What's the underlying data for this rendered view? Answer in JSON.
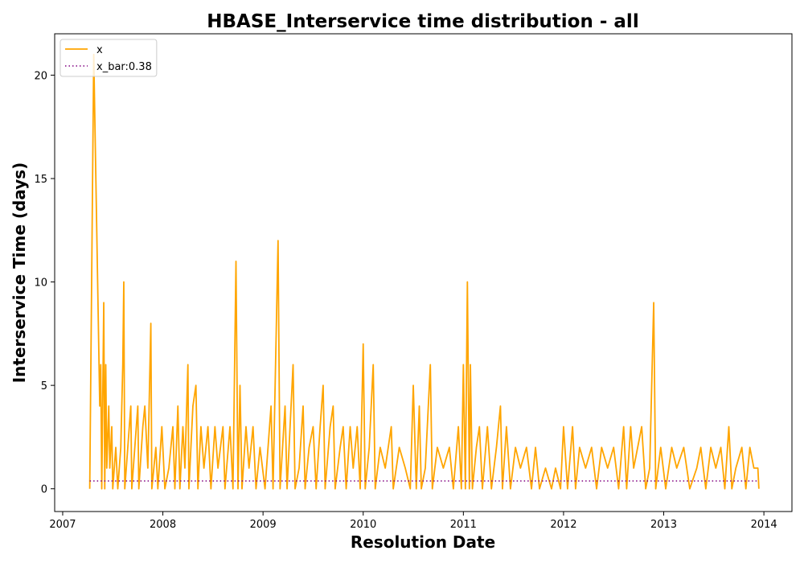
{
  "chart_data": {
    "type": "line",
    "title": "HBASE_Interservice time distribution - all",
    "xlabel": "Resolution Date",
    "ylabel": "Interservice Time (days)",
    "xlim": [
      2006.92,
      2014.28
    ],
    "xticks": [
      2007,
      2008,
      2009,
      2010,
      2011,
      2012,
      2013,
      2014
    ],
    "ylim": [
      -1.1,
      22
    ],
    "yticks": [
      0,
      5,
      10,
      15,
      20
    ],
    "legend": "upper left",
    "series": [
      {
        "name": "x",
        "color": "#ffa500",
        "style": "solid",
        "x": [
          2007.27,
          2007.31,
          2007.37,
          2007.38,
          2007.39,
          2007.41,
          2007.42,
          2007.43,
          2007.44,
          2007.46,
          2007.47,
          2007.49,
          2007.5,
          2007.53,
          2007.55,
          2007.58,
          2007.6,
          2007.61,
          2007.62,
          2007.65,
          2007.68,
          2007.69,
          2007.72,
          2007.75,
          2007.76,
          2007.8,
          2007.82,
          2007.85,
          2007.88,
          2007.89,
          2007.93,
          2007.95,
          2007.99,
          2008.02,
          2008.06,
          2008.1,
          2008.12,
          2008.15,
          2008.17,
          2008.2,
          2008.22,
          2008.25,
          2008.26,
          2008.3,
          2008.33,
          2008.35,
          2008.38,
          2008.41,
          2008.45,
          2008.48,
          2008.52,
          2008.55,
          2008.6,
          2008.62,
          2008.67,
          2008.7,
          2008.73,
          2008.75,
          2008.77,
          2008.79,
          2008.83,
          2008.86,
          2008.9,
          2008.93,
          2008.97,
          2009.02,
          2009.08,
          2009.1,
          2009.15,
          2009.17,
          2009.22,
          2009.24,
          2009.3,
          2009.32,
          2009.36,
          2009.4,
          2009.42,
          2009.46,
          2009.5,
          2009.53,
          2009.57,
          2009.6,
          2009.62,
          2009.67,
          2009.7,
          2009.72,
          2009.77,
          2009.8,
          2009.83,
          2009.87,
          2009.9,
          2009.94,
          2009.97,
          2010.0,
          2010.02,
          2010.06,
          2010.1,
          2010.12,
          2010.17,
          2010.22,
          2010.28,
          2010.3,
          2010.36,
          2010.42,
          2010.47,
          2010.5,
          2010.53,
          2010.56,
          2010.58,
          2010.62,
          2010.67,
          2010.69,
          2010.74,
          2010.8,
          2010.86,
          2010.9,
          2010.95,
          2010.98,
          2011.0,
          2011.02,
          2011.04,
          2011.06,
          2011.07,
          2011.09,
          2011.13,
          2011.16,
          2011.19,
          2011.24,
          2011.28,
          2011.33,
          2011.37,
          2011.39,
          2011.43,
          2011.47,
          2011.52,
          2011.57,
          2011.63,
          2011.68,
          2011.72,
          2011.76,
          2011.82,
          2011.88,
          2011.92,
          2011.97,
          2012.0,
          2012.04,
          2012.09,
          2012.12,
          2012.16,
          2012.22,
          2012.28,
          2012.33,
          2012.38,
          2012.44,
          2012.5,
          2012.55,
          2012.6,
          2012.63,
          2012.67,
          2012.7,
          2012.78,
          2012.82,
          2012.86,
          2012.9,
          2012.92,
          2012.97,
          2013.02,
          2013.08,
          2013.13,
          2013.2,
          2013.26,
          2013.33,
          2013.37,
          2013.42,
          2013.47,
          2013.52,
          2013.57,
          2013.61,
          2013.65,
          2013.68,
          2013.72,
          2013.78,
          2013.82,
          2013.86,
          2013.9,
          2013.94,
          2013.95
        ],
        "values": [
          0,
          21,
          4,
          6,
          0,
          9,
          0,
          6,
          1,
          4,
          1,
          3,
          0,
          2,
          0,
          2,
          6,
          10,
          0,
          2,
          4,
          0,
          2,
          4,
          0,
          3,
          4,
          1,
          8,
          0,
          2,
          0,
          3,
          0,
          1,
          3,
          0,
          4,
          0,
          3,
          1,
          6,
          0,
          4,
          5,
          0,
          3,
          1,
          3,
          0,
          3,
          1,
          3,
          0,
          3,
          0,
          11,
          0,
          5,
          0,
          3,
          1,
          3,
          0,
          2,
          0,
          4,
          0,
          12,
          0,
          4,
          0,
          6,
          0,
          1,
          4,
          0,
          2,
          3,
          0,
          3,
          5,
          0,
          3,
          4,
          0,
          2,
          3,
          0,
          3,
          1,
          3,
          0,
          7,
          0,
          2,
          6,
          0,
          2,
          1,
          3,
          0,
          2,
          1,
          0,
          5,
          0,
          4,
          0,
          1,
          6,
          0,
          2,
          1,
          2,
          0,
          3,
          0,
          6,
          0,
          10,
          0,
          6,
          0,
          2,
          3,
          0,
          3,
          0,
          2,
          4,
          0,
          3,
          0,
          2,
          1,
          2,
          0,
          2,
          0,
          1,
          0,
          1,
          0,
          3,
          0,
          3,
          0,
          2,
          1,
          2,
          0,
          2,
          1,
          2,
          0,
          3,
          0,
          3,
          1,
          3,
          0,
          1,
          9,
          0,
          2,
          0,
          2,
          1,
          2,
          0,
          1,
          2,
          0,
          2,
          1,
          2,
          0,
          3,
          0,
          1,
          2,
          0,
          2,
          1,
          1,
          0
        ]
      },
      {
        "name": "x_bar:0.38",
        "color": "#800080",
        "style": "dotted",
        "x": [
          2007.27,
          2013.95
        ],
        "values": [
          0.38,
          0.38
        ]
      }
    ]
  }
}
